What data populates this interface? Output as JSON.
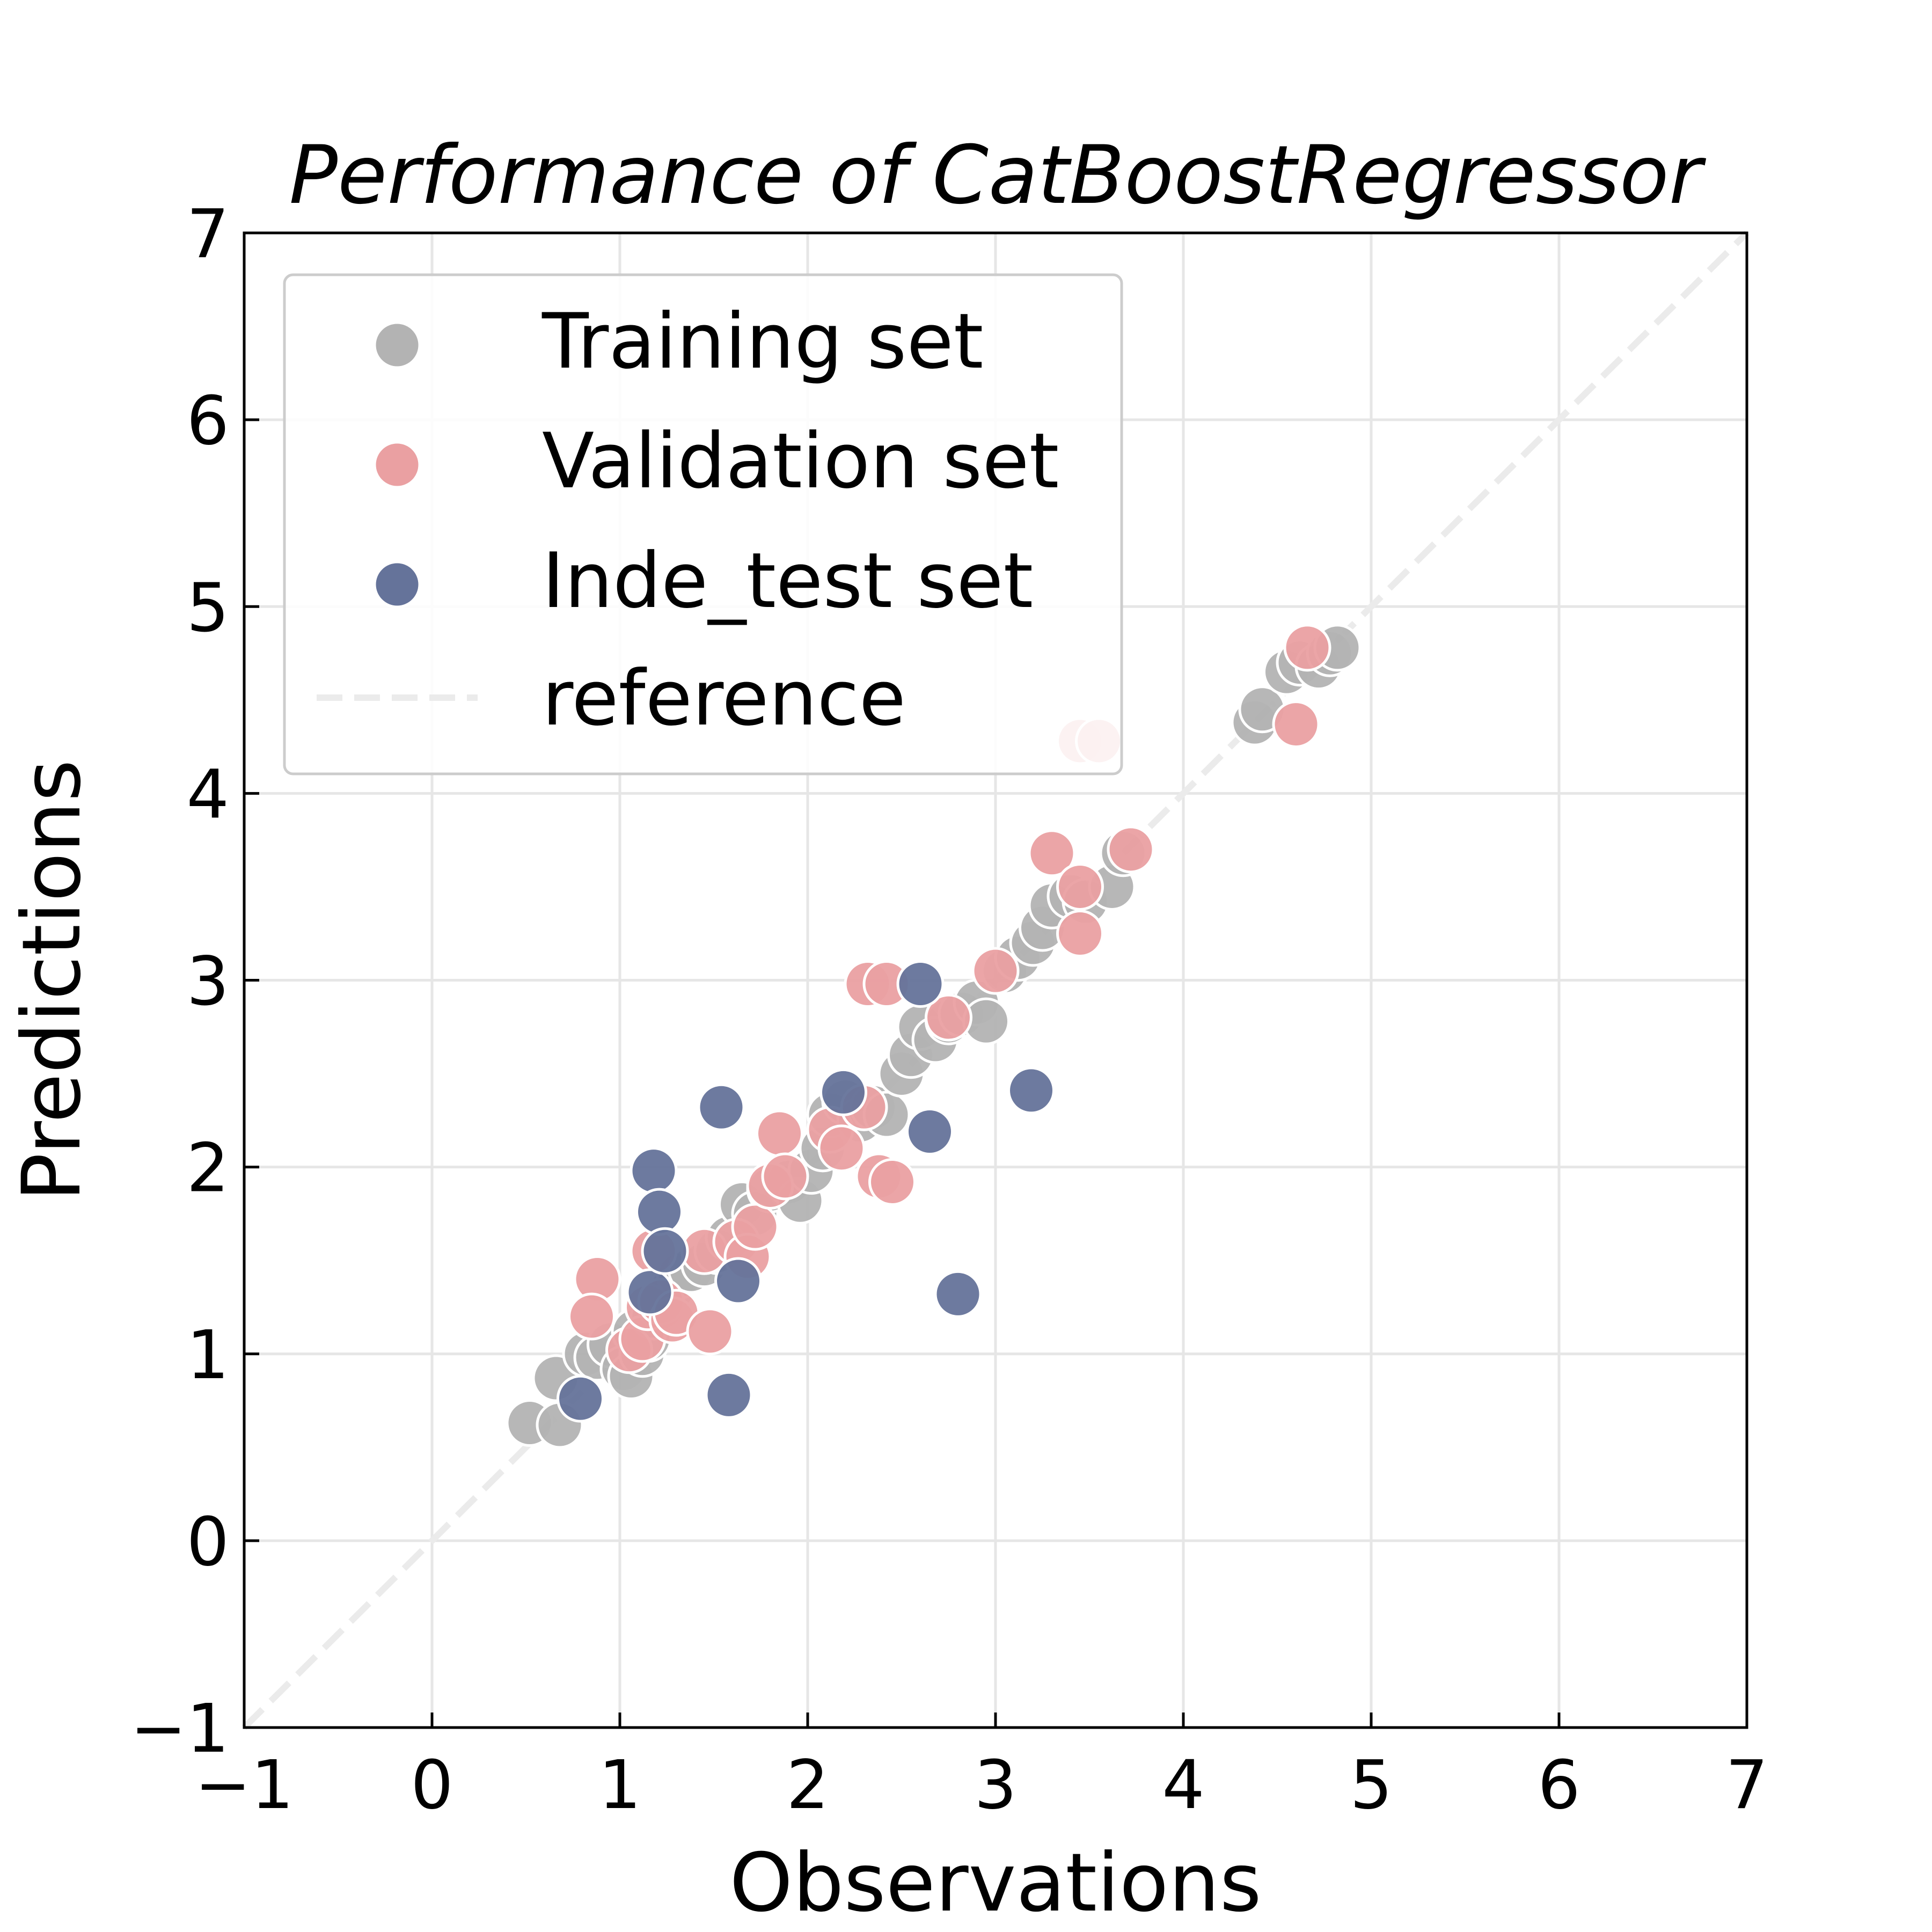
{
  "chart_data": {
    "type": "scatter",
    "title": "Performance of CatBoostRegressor",
    "xlabel": "Observations",
    "ylabel": "Predictions",
    "xlim": [
      -1,
      7
    ],
    "ylim": [
      -1,
      7
    ],
    "xticks": [
      "−1",
      "0",
      "1",
      "2",
      "3",
      "4",
      "5",
      "6",
      "7"
    ],
    "yticks": [
      "−1",
      "0",
      "1",
      "2",
      "3",
      "4",
      "5",
      "6",
      "7"
    ],
    "grid": true,
    "legend_position": "top-left",
    "series": [
      {
        "name": "Training set",
        "color": "#b3b3b3",
        "points": [
          [
            0.52,
            0.63
          ],
          [
            0.68,
            0.62
          ],
          [
            0.66,
            0.87
          ],
          [
            0.82,
            1.0
          ],
          [
            0.88,
            0.98
          ],
          [
            0.95,
            1.05
          ],
          [
            1.02,
            0.92
          ],
          [
            1.06,
            0.88
          ],
          [
            1.08,
            1.12
          ],
          [
            1.12,
            1.0
          ],
          [
            1.15,
            1.08
          ],
          [
            1.18,
            1.2
          ],
          [
            1.22,
            1.25
          ],
          [
            1.28,
            1.35
          ],
          [
            1.32,
            1.42
          ],
          [
            1.38,
            1.45
          ],
          [
            1.45,
            1.48
          ],
          [
            1.52,
            1.55
          ],
          [
            1.58,
            1.62
          ],
          [
            1.65,
            1.8
          ],
          [
            1.72,
            1.75
          ],
          [
            1.8,
            1.88
          ],
          [
            1.9,
            1.92
          ],
          [
            1.96,
            1.82
          ],
          [
            2.02,
            1.98
          ],
          [
            2.08,
            2.1
          ],
          [
            2.12,
            2.28
          ],
          [
            2.2,
            2.35
          ],
          [
            2.28,
            2.25
          ],
          [
            2.35,
            2.32
          ],
          [
            2.42,
            2.28
          ],
          [
            2.5,
            2.5
          ],
          [
            2.55,
            2.6
          ],
          [
            2.6,
            2.75
          ],
          [
            2.68,
            2.68
          ],
          [
            2.75,
            2.78
          ],
          [
            2.82,
            2.82
          ],
          [
            2.9,
            2.88
          ],
          [
            2.95,
            2.78
          ],
          [
            3.05,
            3.05
          ],
          [
            3.12,
            3.12
          ],
          [
            3.2,
            3.2
          ],
          [
            3.25,
            3.28
          ],
          [
            3.3,
            3.4
          ],
          [
            3.4,
            3.45
          ],
          [
            3.48,
            3.42
          ],
          [
            3.62,
            3.5
          ],
          [
            3.68,
            3.68
          ],
          [
            4.38,
            4.38
          ],
          [
            4.42,
            4.45
          ],
          [
            4.55,
            4.65
          ],
          [
            4.62,
            4.7
          ],
          [
            4.72,
            4.68
          ],
          [
            4.78,
            4.75
          ],
          [
            4.82,
            4.78
          ]
        ]
      },
      {
        "name": "Validation set",
        "color": "#eaa0a2",
        "points": [
          [
            0.88,
            1.4
          ],
          [
            0.85,
            1.2
          ],
          [
            1.05,
            1.02
          ],
          [
            1.12,
            1.08
          ],
          [
            1.15,
            1.25
          ],
          [
            1.18,
            1.55
          ],
          [
            1.22,
            1.28
          ],
          [
            1.28,
            1.18
          ],
          [
            1.3,
            1.22
          ],
          [
            1.45,
            1.55
          ],
          [
            1.48,
            1.12
          ],
          [
            1.62,
            1.6
          ],
          [
            1.68,
            1.52
          ],
          [
            1.72,
            1.68
          ],
          [
            1.8,
            1.9
          ],
          [
            1.85,
            2.18
          ],
          [
            1.88,
            1.95
          ],
          [
            2.12,
            2.2
          ],
          [
            2.18,
            2.1
          ],
          [
            2.3,
            2.32
          ],
          [
            2.32,
            2.98
          ],
          [
            2.38,
            1.95
          ],
          [
            2.42,
            2.98
          ],
          [
            2.45,
            1.92
          ],
          [
            2.75,
            2.8
          ],
          [
            3.0,
            3.05
          ],
          [
            3.3,
            3.68
          ],
          [
            3.45,
            3.5
          ],
          [
            3.45,
            3.25
          ],
          [
            3.72,
            3.7
          ],
          [
            3.45,
            4.28
          ],
          [
            3.55,
            4.28
          ],
          [
            4.6,
            4.37
          ],
          [
            4.66,
            4.78
          ]
        ]
      },
      {
        "name": "Inde_test set",
        "color": "#65739a",
        "points": [
          [
            0.79,
            0.76
          ],
          [
            1.16,
            1.33
          ],
          [
            1.18,
            1.98
          ],
          [
            1.21,
            1.76
          ],
          [
            1.24,
            1.55
          ],
          [
            1.54,
            2.32
          ],
          [
            1.58,
            0.78
          ],
          [
            1.63,
            1.39
          ],
          [
            2.19,
            2.4
          ],
          [
            2.6,
            2.98
          ],
          [
            2.65,
            2.19
          ],
          [
            2.8,
            1.32
          ],
          [
            3.19,
            2.41
          ]
        ]
      },
      {
        "name": "reference",
        "color": "#ebebeb",
        "line": [
          [
            -1,
            -1
          ],
          [
            7,
            7
          ]
        ]
      }
    ]
  }
}
